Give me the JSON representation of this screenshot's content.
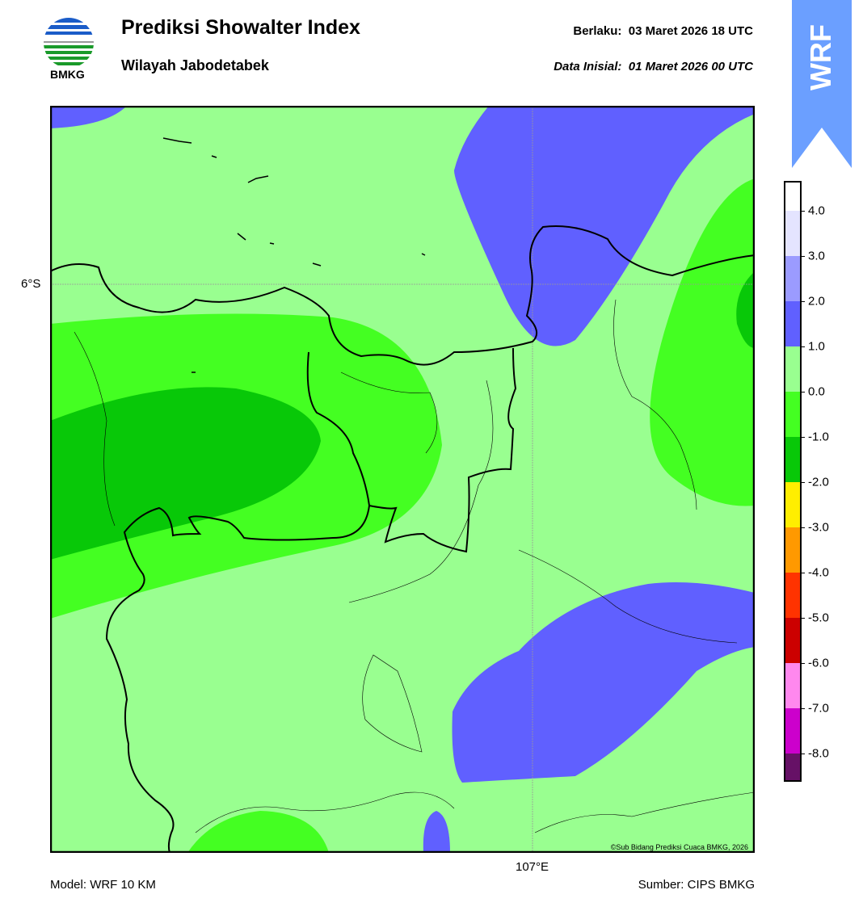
{
  "header": {
    "title": "Prediksi Showalter Index",
    "region": "Wilayah Jabodetabek",
    "valid_label": "Berlaku:",
    "valid_value": "03 Maret 2026 18 UTC",
    "init_label": "Data Inisial:",
    "init_value": "01 Maret 2026 00 UTC",
    "logo_text": "BMKG",
    "badge": "WRF"
  },
  "map": {
    "lat_label": "6°S",
    "lon_label": "107°E",
    "copyright": "©Sub Bidang Prediksi Cuaca BMKG, 2026"
  },
  "colorbar": {
    "labels": [
      "4.0",
      "3.0",
      "2.0",
      "1.0",
      "0.0",
      "-1.0",
      "-2.0",
      "-3.0",
      "-4.0",
      "-5.0",
      "-6.0",
      "-7.0",
      "-8.0"
    ],
    "colors": [
      "#ffffff",
      "#e4e4ff",
      "#9b9bff",
      "#6060ff",
      "#99ff90",
      "#44ff22",
      "#08c808",
      "#ffee00",
      "#ff9900",
      "#ff3300",
      "#cc0000",
      "#ff88ee",
      "#cc00cc",
      "#661166"
    ]
  },
  "footer": {
    "model": "Model: WRF 10 KM",
    "source": "Sumber: CIPS BMKG"
  }
}
